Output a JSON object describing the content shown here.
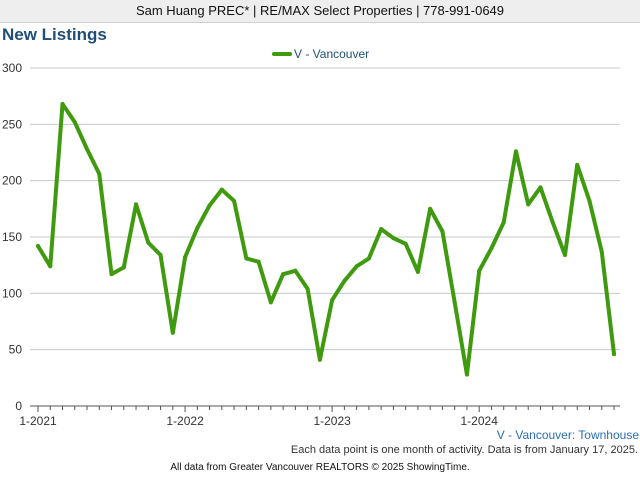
{
  "header": {
    "text": "Sam Huang PREC* | RE/MAX Select Properties | 778-991-0649"
  },
  "note": "Each data point is one month of activity. Data is from January 17, 2025.",
  "footer": "All data from Greater Vancouver REALTORS © 2025 ShowingTime.",
  "chart_data": {
    "type": "line",
    "title": "New Listings",
    "legend": {
      "position": "top-center",
      "label": "V - Vancouver"
    },
    "corner_label": "V - Vancouver: Townhouse",
    "color": "#3f9a0f",
    "xlim": [
      0,
      47
    ],
    "ylim": [
      0,
      300
    ],
    "yticks": [
      0,
      50,
      100,
      150,
      200,
      250,
      300
    ],
    "xticks": [
      {
        "x": 0,
        "label": "1-2021"
      },
      {
        "x": 12,
        "label": "1-2022"
      },
      {
        "x": 24,
        "label": "1-2023"
      },
      {
        "x": 36,
        "label": "1-2024"
      }
    ],
    "grid": true,
    "series": [
      {
        "name": "V - Vancouver",
        "values": [
          142,
          124,
          268,
          252,
          228,
          206,
          117,
          123,
          179,
          145,
          134,
          65,
          132,
          158,
          178,
          192,
          182,
          131,
          128,
          92,
          117,
          120,
          104,
          41,
          94,
          111,
          124,
          131,
          157,
          149,
          144,
          119,
          175,
          155,
          92,
          28,
          120,
          140,
          163,
          226,
          179,
          194,
          163,
          134,
          214,
          182,
          137,
          46
        ]
      }
    ]
  }
}
